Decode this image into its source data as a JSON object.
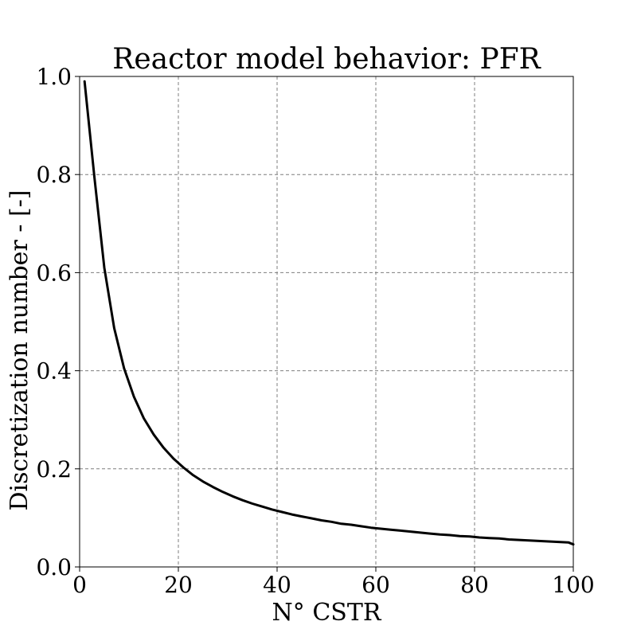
{
  "chart_data": {
    "type": "line",
    "title": "Reactor model behavior: PFR",
    "xlabel": "N° CSTR",
    "ylabel": "Discretization number - [-]",
    "xlim": [
      0,
      100
    ],
    "ylim": [
      0,
      1.0
    ],
    "x_ticks": [
      0,
      20,
      40,
      60,
      80,
      100
    ],
    "x_tick_labels": [
      "0",
      "20",
      "40",
      "60",
      "80",
      "100"
    ],
    "y_ticks": [
      0.0,
      0.2,
      0.4,
      0.6,
      0.8,
      1.0
    ],
    "y_tick_labels": [
      "0.0",
      "0.2",
      "0.4",
      "0.6",
      "0.8",
      "1.0"
    ],
    "grid": true,
    "series": [
      {
        "color": "#000000",
        "x": [
          1,
          3,
          5,
          7,
          9,
          11,
          13,
          15,
          17,
          19,
          21,
          23,
          25,
          27,
          29,
          31,
          33,
          35,
          37,
          39,
          41,
          43,
          45,
          47,
          49,
          51,
          53,
          55,
          57,
          59,
          61,
          63,
          65,
          67,
          69,
          71,
          73,
          75,
          77,
          79,
          81,
          83,
          85,
          87,
          89,
          91,
          93,
          95,
          97,
          99,
          100
        ],
        "y": [
          0.99,
          0.794,
          0.61,
          0.487,
          0.405,
          0.347,
          0.303,
          0.27,
          0.243,
          0.221,
          0.203,
          0.187,
          0.174,
          0.163,
          0.153,
          0.144,
          0.136,
          0.129,
          0.123,
          0.117,
          0.112,
          0.107,
          0.103,
          0.099,
          0.095,
          0.092,
          0.088,
          0.086,
          0.083,
          0.08,
          0.078,
          0.076,
          0.074,
          0.072,
          0.07,
          0.068,
          0.066,
          0.065,
          0.063,
          0.062,
          0.06,
          0.059,
          0.058,
          0.056,
          0.055,
          0.054,
          0.053,
          0.052,
          0.051,
          0.05,
          0.046
        ]
      }
    ]
  }
}
